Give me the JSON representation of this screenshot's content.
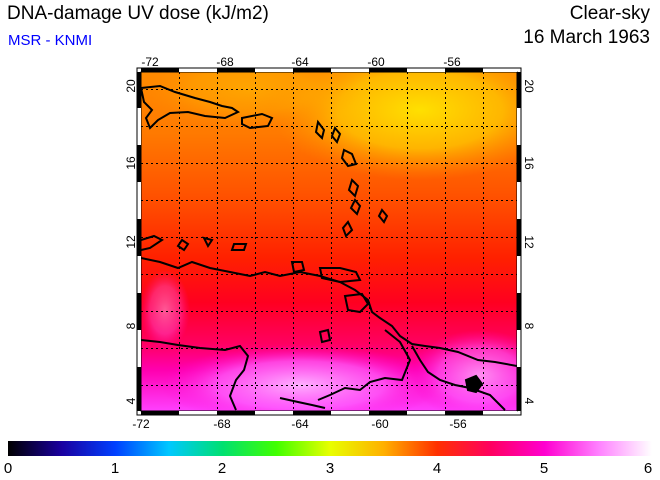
{
  "header": {
    "title": "DNA-damage UV dose (kJ/m2)",
    "source": "MSR - KNMI",
    "condition": "Clear-sky",
    "date": "16 March 1963"
  },
  "colors": {
    "source_text": "#0000ff",
    "land_outline": "#000000",
    "gridline": "#000000"
  },
  "map": {
    "lon_range": [
      -73,
      -53.2
    ],
    "lat_range": [
      3.5,
      20.6
    ],
    "lon_ticks": [
      "-72",
      "-68",
      "-64",
      "-60",
      "-56"
    ],
    "lat_ticks": [
      "4",
      "8",
      "12",
      "16",
      "20"
    ]
  },
  "colorbar": {
    "min": 0,
    "max": 6,
    "labels": [
      "0",
      "1",
      "2",
      "3",
      "4",
      "5",
      "6"
    ],
    "stops": [
      "#000000",
      "#1a00a0",
      "#0040ff",
      "#00c8ff",
      "#00e070",
      "#40ff00",
      "#e8ff00",
      "#ffb000",
      "#ff3000",
      "#ff0060",
      "#ff00d0",
      "#ff80ff",
      "#ffffff"
    ]
  }
}
